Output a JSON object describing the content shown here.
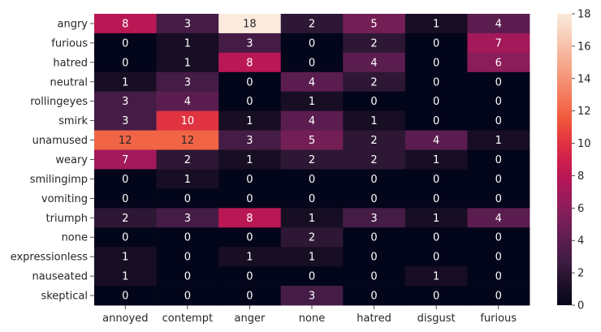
{
  "chart_data": {
    "type": "heatmap",
    "title": "",
    "xlabel": "",
    "ylabel": "",
    "x_categories": [
      "annoyed",
      "contempt",
      "anger",
      "none",
      "hatred",
      "disgust",
      "furious"
    ],
    "y_categories": [
      "angry",
      "furious",
      "hatred",
      "neutral",
      "rollingeyes",
      "smirk",
      "unamused",
      "weary",
      "smilingimp",
      "vomiting",
      "triumph",
      "none",
      "expressionless",
      "nauseated",
      "skeptical"
    ],
    "values": [
      [
        8,
        3,
        18,
        2,
        5,
        1,
        4
      ],
      [
        0,
        1,
        3,
        0,
        2,
        0,
        7
      ],
      [
        0,
        1,
        8,
        0,
        4,
        0,
        6
      ],
      [
        1,
        3,
        0,
        4,
        2,
        0,
        0
      ],
      [
        3,
        4,
        0,
        1,
        0,
        0,
        0
      ],
      [
        3,
        10,
        1,
        4,
        1,
        0,
        0
      ],
      [
        12,
        12,
        3,
        5,
        2,
        4,
        1
      ],
      [
        7,
        2,
        1,
        2,
        2,
        1,
        0
      ],
      [
        0,
        1,
        0,
        0,
        0,
        0,
        0
      ],
      [
        0,
        0,
        0,
        0,
        0,
        0,
        0
      ],
      [
        2,
        3,
        8,
        1,
        3,
        1,
        4
      ],
      [
        0,
        0,
        0,
        2,
        0,
        0,
        0
      ],
      [
        1,
        0,
        1,
        1,
        0,
        0,
        0
      ],
      [
        1,
        0,
        0,
        0,
        0,
        1,
        0
      ],
      [
        0,
        0,
        0,
        3,
        0,
        0,
        0
      ]
    ],
    "colorbar": {
      "min": 0,
      "max": 18,
      "ticks": [
        "0",
        "2",
        "4",
        "6",
        "8",
        "10",
        "12",
        "14",
        "16",
        "18"
      ],
      "colormap": "rocket",
      "colors": [
        "#03051a",
        "#1e1127",
        "#3b1b40",
        "#581d4e",
        "#761f57",
        "#951c5b",
        "#b41658",
        "#d0204c",
        "#e5383e",
        "#f05a3c",
        "#f4795a",
        "#f59779",
        "#f6b49a",
        "#f8d0bb",
        "#faebdd"
      ]
    }
  }
}
